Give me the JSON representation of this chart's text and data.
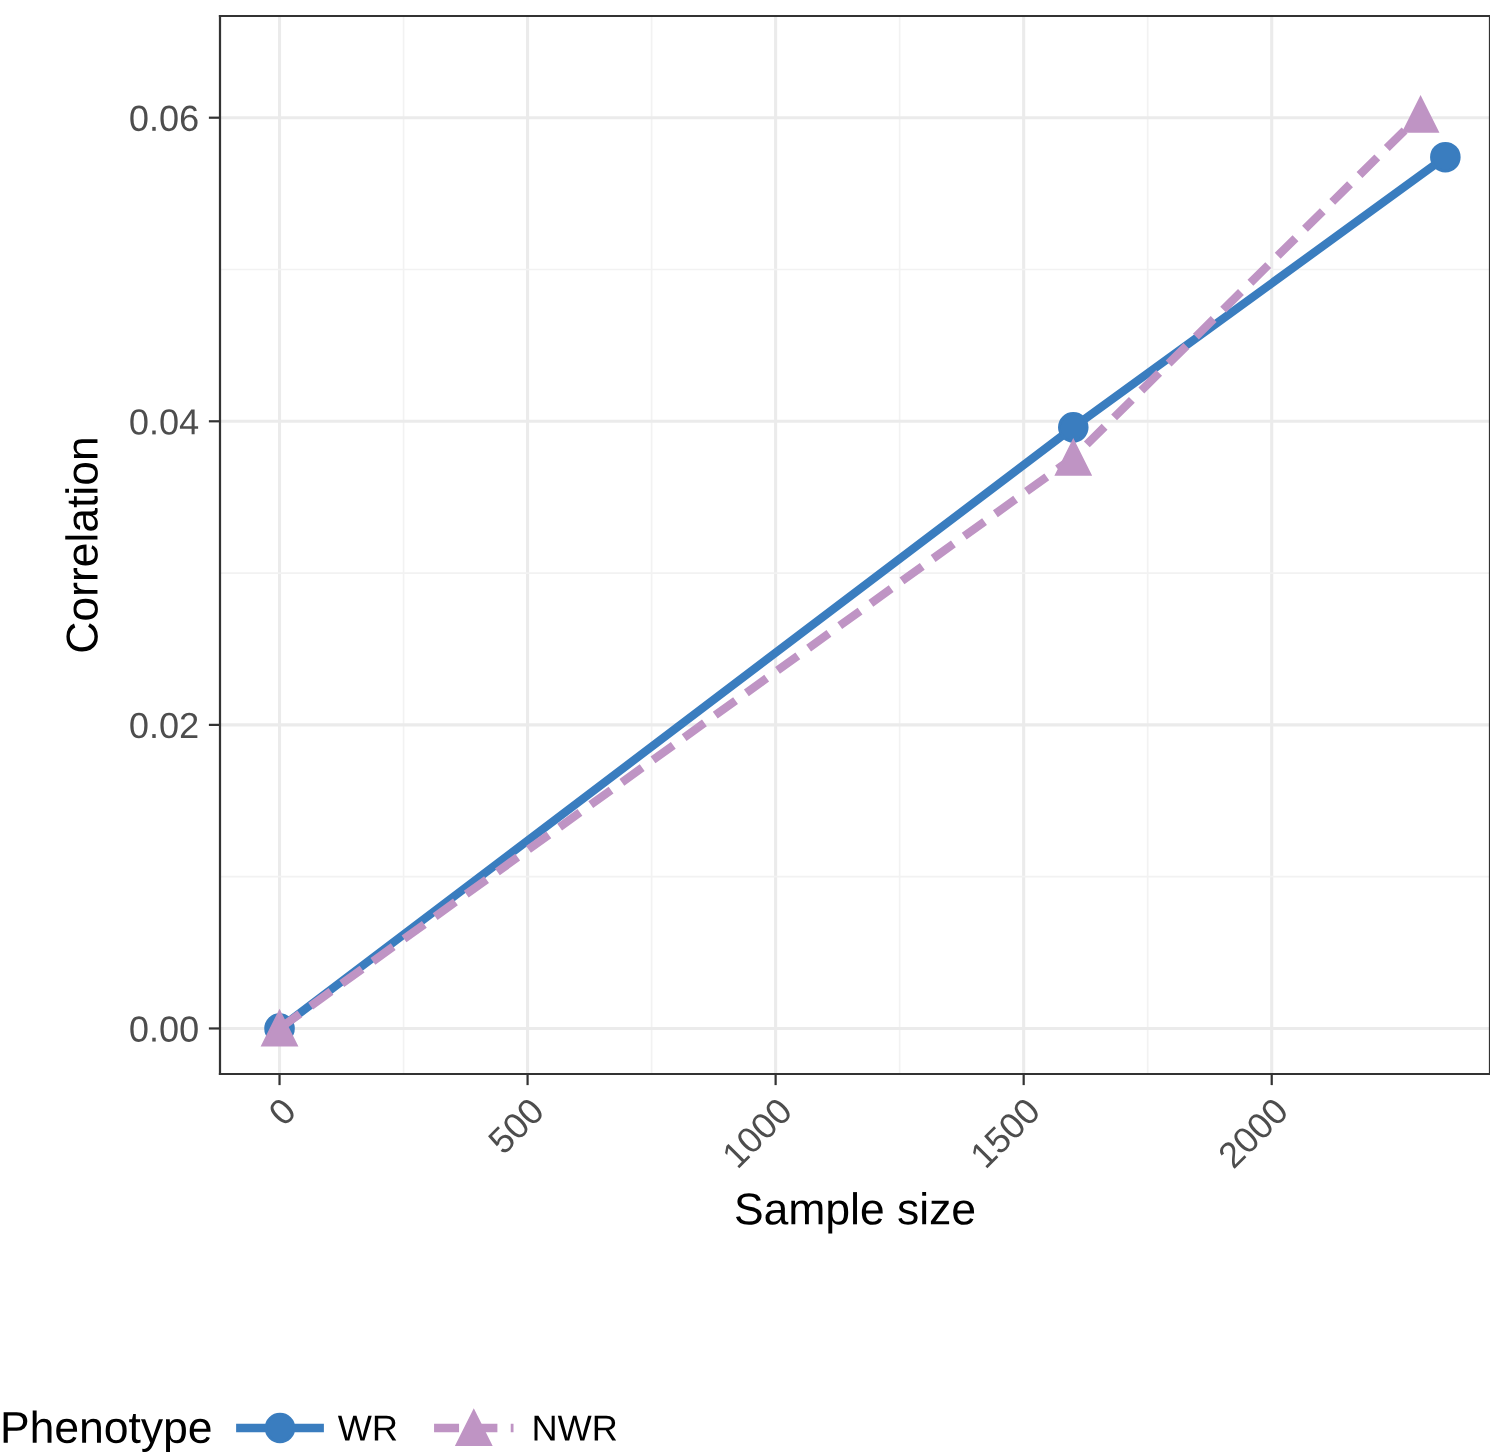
{
  "chart_data": {
    "type": "line",
    "xlabel": "Sample size",
    "ylabel": "Correlation",
    "legend_title": "Phenotype",
    "legend": "bottom",
    "grid": true,
    "xlim": [
      -120,
      2440
    ],
    "xticks": [
      0,
      500,
      1000,
      1500,
      2000
    ],
    "ylim": [
      -0.003,
      0.0667
    ],
    "yticks": [
      {
        "value": 0,
        "label": "0.00"
      },
      {
        "value": 0.02,
        "label": "0.02"
      },
      {
        "value": 0.04,
        "label": "0.04"
      },
      {
        "value": 0.06,
        "label": "0.06"
      }
    ],
    "series": [
      {
        "name": "WR",
        "color": "#3a7dbf",
        "marker": "circle",
        "line_style": "solid",
        "x": [
          0,
          1600,
          2350
        ],
        "values": [
          0,
          0.0396,
          0.0574
        ]
      },
      {
        "name": "NWR",
        "color": "#bf94c4",
        "marker": "triangle",
        "line_style": "dashed",
        "x": [
          0,
          1600,
          2300
        ],
        "values": [
          0,
          0.0376,
          0.0602
        ]
      }
    ]
  }
}
